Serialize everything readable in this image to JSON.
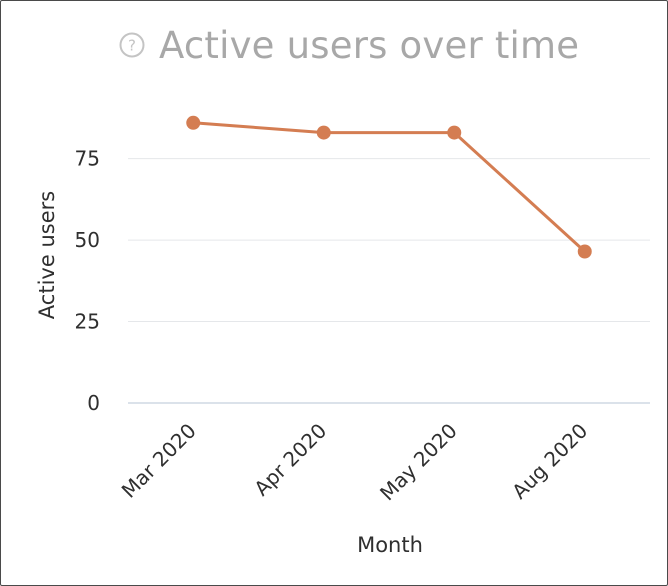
{
  "chart": {
    "title": "Active users over time",
    "help_icon": "question-circle-icon"
  },
  "chart_data": {
    "type": "line",
    "title": "Active users over time",
    "xlabel": "Month",
    "ylabel": "Active users",
    "categories": [
      "Mar 2020",
      "Apr 2020",
      "May 2020",
      "Aug 2020"
    ],
    "series": [
      {
        "values": [
          86,
          83,
          83,
          46.5
        ]
      }
    ],
    "ylim": [
      0,
      93
    ],
    "yticks": [
      0,
      25,
      50,
      75
    ],
    "grid": true,
    "legend": "none",
    "colors": {
      "series": "#d47d52",
      "grid": "#e5e7ea",
      "baseline": "#cfd8e3"
    }
  }
}
